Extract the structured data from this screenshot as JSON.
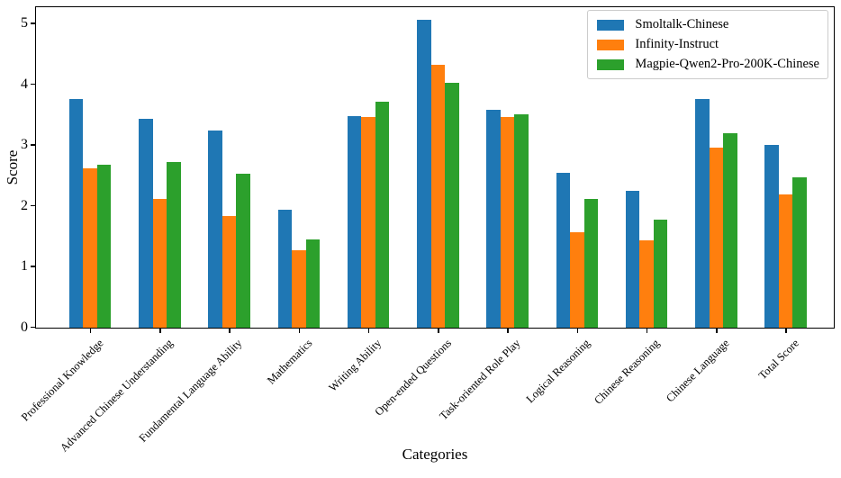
{
  "chart_data": {
    "type": "bar",
    "title": "",
    "xlabel": "Categories",
    "ylabel": "Score",
    "ylim": [
      0,
      5.26
    ],
    "yticks": [
      0,
      1,
      2,
      3,
      4,
      5
    ],
    "grid": false,
    "legend_position": "upper right",
    "categories": [
      "Professional Knowledge",
      "Advanced Chinese Understanding",
      "Fundamental Language Ability",
      "Mathematics",
      "Writing Ability",
      "Open-ended Questions",
      "Task-oriented Role Play",
      "Logical Reasoning",
      "Chinese Reasoning",
      "Chinese Language",
      "Total Score"
    ],
    "series": [
      {
        "name": "Smoltalk-Chinese",
        "color": "#1f77b4",
        "values": [
          3.77,
          3.44,
          3.24,
          1.94,
          3.48,
          5.07,
          3.59,
          2.55,
          2.25,
          3.76,
          3.01
        ]
      },
      {
        "name": "Infinity-Instruct",
        "color": "#ff7f0e",
        "values": [
          2.62,
          2.12,
          1.84,
          1.28,
          3.47,
          4.32,
          3.46,
          1.57,
          1.44,
          2.97,
          2.19
        ]
      },
      {
        "name": "Magpie-Qwen2-Pro-200K-Chinese",
        "color": "#2ca02c",
        "values": [
          2.68,
          2.72,
          2.53,
          1.45,
          3.72,
          4.03,
          3.51,
          2.12,
          1.78,
          3.2,
          2.48
        ]
      }
    ]
  }
}
